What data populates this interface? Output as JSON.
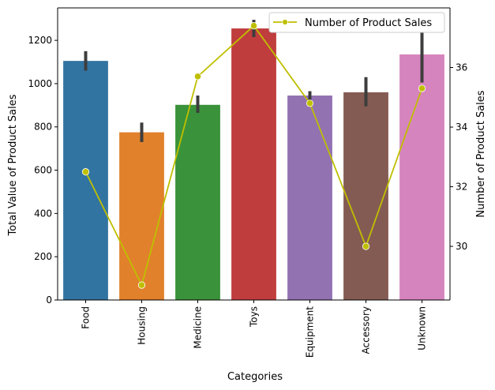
{
  "chart_data": {
    "type": "bar",
    "categories": [
      "Food",
      "Housing",
      "Medicine",
      "Toys",
      "Equipment",
      "Accessory",
      "Unknown"
    ],
    "bar_colors": [
      "#3274a1",
      "#e1812c",
      "#3a923a",
      "#c03d3e",
      "#9372b2",
      "#845b53",
      "#d684bd"
    ],
    "series": [
      {
        "values": [
          1105,
          775,
          902,
          1255,
          945,
          960,
          1135
        ],
        "error_low": [
          1060,
          730,
          865,
          1215,
          920,
          895,
          1005
        ],
        "error_high": [
          1150,
          820,
          945,
          1295,
          965,
          1030,
          1280
        ],
        "axis": "left",
        "chart_type": "bar"
      },
      {
        "name": "Number of Product Sales",
        "values": [
          32.5,
          28.7,
          35.7,
          37.4,
          34.8,
          30.0,
          35.3
        ],
        "axis": "right",
        "chart_type": "line",
        "marker": "circle",
        "color": "#bfbf00"
      }
    ],
    "xlabel": "Categories",
    "ylabel": "Total Value of Product Sales",
    "ylabel_right": "Number of Product Sales",
    "ylim": [
      0,
      1350
    ],
    "ylim_right": [
      28.2,
      38
    ],
    "yticks": [
      "0",
      "200",
      "400",
      "600",
      "800",
      "1000",
      "1200"
    ],
    "yticks_right": [
      "30",
      "32",
      "34",
      "36"
    ],
    "grid": false,
    "legend_position": "top-right",
    "legend": [
      "Number of Product Sales"
    ]
  }
}
